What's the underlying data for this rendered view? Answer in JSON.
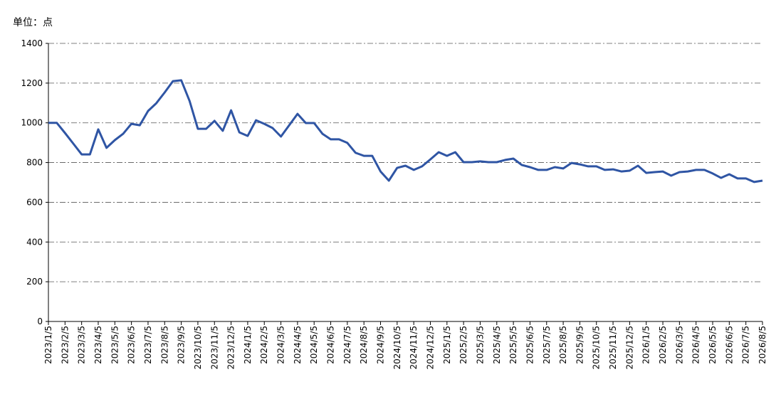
{
  "chart_data": {
    "type": "line",
    "y_unit": "单位：点",
    "categories": [
      "2023/1/5",
      null,
      "2023/2/5",
      null,
      "2023/3/5",
      null,
      "2023/4/5",
      null,
      "2023/5/5",
      null,
      "2023/6/5",
      null,
      "2023/7/5",
      null,
      "2023/8/5",
      null,
      "2023/9/5",
      null,
      "2023/10/5",
      null,
      "2023/11/5",
      null,
      "2023/12/5",
      null,
      "2024/1/5",
      null,
      "2024/2/5",
      null,
      "2024/3/5",
      null,
      "2024/4/5",
      null,
      "2024/5/5",
      null,
      "2024/6/5",
      null,
      "2024/7/5",
      null,
      "2024/8/5",
      null,
      "2024/9/5",
      null,
      "2024/10/5",
      null,
      "2024/11/5",
      null,
      "2024/12/5",
      null,
      "2025/1/5",
      null,
      "2025/2/5",
      null,
      "2025/3/5",
      null,
      "2025/4/5",
      null,
      "2025/5/5",
      null,
      "2025/6/5",
      null,
      "2025/7/5",
      null,
      "2025/8/5",
      null,
      "2025/9/5",
      null,
      "2025/10/5",
      null,
      "2025/11/5",
      null,
      "2025/12/5",
      null,
      "2026/1/5",
      null,
      "2026/2/5",
      null,
      "2026/3/5",
      null,
      "2026/4/5",
      null,
      "2026/5/5",
      null,
      "2026/6/5",
      null,
      "2026/7/5",
      null,
      "2026/8/5"
    ],
    "series": [
      {
        "color": "#2f55a4",
        "values": [
          1000,
          1000,
          949,
          895,
          841,
          841,
          967,
          874,
          913,
          945,
          995,
          988,
          1060,
          1099,
          1153,
          1210,
          1214,
          1110,
          970,
          970,
          1010,
          960,
          1063,
          952,
          934,
          1013,
          995,
          974,
          931,
          988,
          1045,
          999,
          999,
          945,
          917,
          917,
          899,
          849,
          834,
          834,
          755,
          709,
          773,
          784,
          763,
          781,
          816,
          852,
          834,
          852,
          802,
          802,
          806,
          802,
          802,
          813,
          820,
          788,
          777,
          763,
          763,
          777,
          770,
          798,
          791,
          781,
          781,
          763,
          766,
          755,
          759,
          784,
          748,
          752,
          755,
          734,
          752,
          755,
          763,
          763,
          745,
          723,
          741,
          720,
          720,
          702,
          709
        ]
      }
    ],
    "ylim": [
      0,
      1400
    ],
    "yticks": [
      0,
      200,
      400,
      600,
      800,
      1000,
      1200,
      1400
    ],
    "grid": true
  }
}
